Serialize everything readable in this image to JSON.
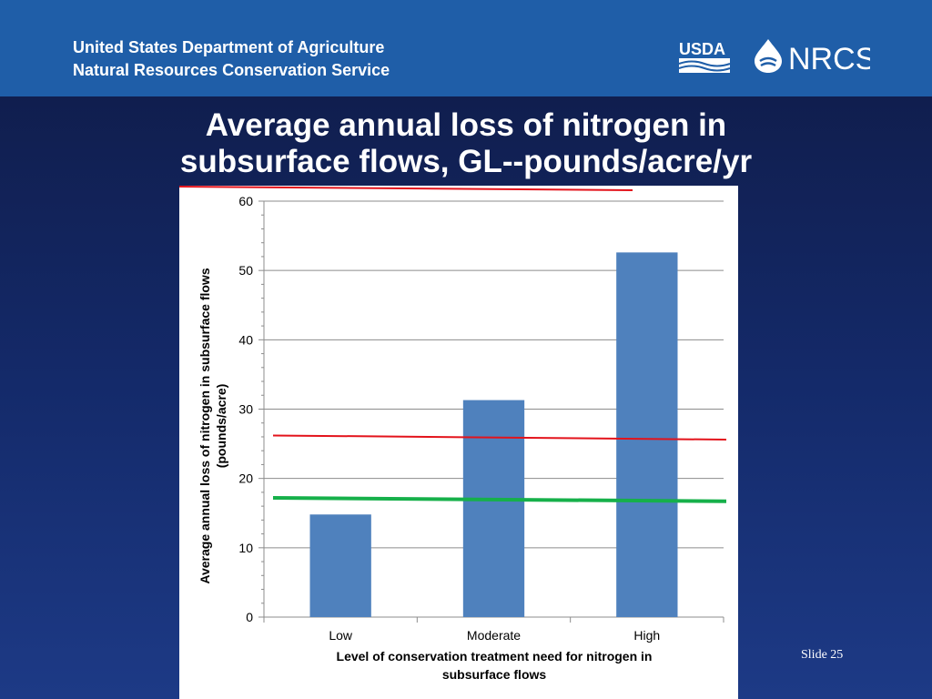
{
  "header": {
    "org_line1": "United States Department of Agriculture",
    "org_line2": "Natural Resources Conservation Service",
    "usda_logo_text": "USDA",
    "nrcs_logo_text": "NRCS"
  },
  "slide": {
    "title_line1": "Average annual loss of nitrogen in",
    "title_line2": "subsurface flows, GL--pounds/acre/yr",
    "number": "Slide 25"
  },
  "colors": {
    "bar": "#4f81bd",
    "red_line": "#e3131b",
    "green_line": "#16b04a",
    "header_bg": "#1f5ea8"
  },
  "chart_data": {
    "type": "bar",
    "categories": [
      "Low",
      "Moderate",
      "High"
    ],
    "values": [
      14.8,
      31.3,
      52.6
    ],
    "ylabel_line1": "Average annual loss of nitrogen in subsurface flows",
    "ylabel_line2": "(pounds/acre)",
    "xlabel_line1": "Level of conservation treatment need for nitrogen in",
    "xlabel_line2": "subsurface flows",
    "ylim": [
      0,
      60
    ],
    "yticks": [
      0,
      10,
      20,
      30,
      40,
      50,
      60
    ],
    "grid": true,
    "reference_lines": [
      {
        "color": "red",
        "y_start": 26.2,
        "y_end": 25.6
      },
      {
        "color": "green",
        "y_start": 17.2,
        "y_end": 16.7
      }
    ]
  }
}
